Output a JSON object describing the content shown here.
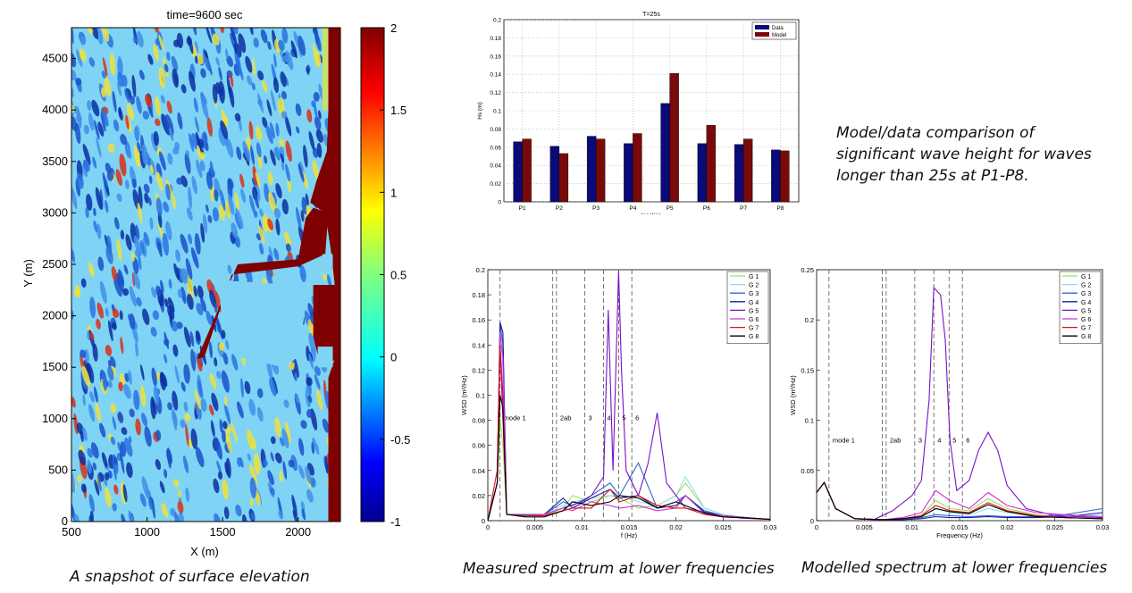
{
  "captions": {
    "snapshot": "A snapshot of surface elevation",
    "measured": "Measured spectrum at lower frequencies",
    "modelled": "Modelled spectrum at lower frequencies",
    "comparison": "Model/data comparison of significant wave height for waves longer than 25s at P1-P8."
  },
  "chart_data": [
    {
      "type": "heatmap",
      "title": "time=9600 sec",
      "xlabel": "X (m)",
      "ylabel": "Y (m)",
      "xlim": [
        500,
        2280
      ],
      "ylim": [
        0,
        4800
      ],
      "xticks": [
        "500",
        "1000",
        "1500",
        "2000"
      ],
      "yticks": [
        "0",
        "500",
        "1000",
        "1500",
        "2000",
        "2500",
        "3000",
        "3500",
        "4000",
        "4500"
      ],
      "colorbar": {
        "range": [
          -1,
          2
        ],
        "ticks": [
          "2",
          "1.5",
          "1",
          "0.5",
          "0",
          "-0.5",
          "-1"
        ]
      },
      "colors": {
        "land": "#7f0000",
        "low": "#00008f",
        "mid": "#7fd4f5",
        "high": "#800000"
      }
    },
    {
      "type": "bar",
      "title": "T=25s",
      "xlabel": "location",
      "ylabel": "Hs (m)",
      "ylim": [
        0,
        0.2
      ],
      "yticks": [
        "0",
        "0.02",
        "0.04",
        "0.06",
        "0.08",
        "0.1",
        "0.12",
        "0.14",
        "0.16",
        "0.18",
        "0.2"
      ],
      "categories": [
        "P1",
        "P2",
        "P3",
        "P4",
        "P5",
        "P6",
        "P7",
        "P8"
      ],
      "series": [
        {
          "name": "Data",
          "color": "#0a0a78",
          "values": [
            0.066,
            0.061,
            0.072,
            0.064,
            0.108,
            0.064,
            0.063,
            0.057
          ]
        },
        {
          "name": "Model",
          "color": "#7a0a0a",
          "values": [
            0.069,
            0.053,
            0.069,
            0.075,
            0.141,
            0.084,
            0.069,
            0.056
          ]
        }
      ],
      "legend": "top-right",
      "grid": true
    },
    {
      "type": "line",
      "xlabel": "f (Hz)",
      "ylabel": "WSD (m²/Hz)",
      "xlim": [
        0,
        0.03
      ],
      "ylim": [
        0,
        0.2
      ],
      "xticks": [
        "0",
        "0.005",
        "0.01",
        "0.015",
        "0.02",
        "0.025",
        "0.03"
      ],
      "yticks": [
        "0",
        "0.02",
        "0.04",
        "0.06",
        "0.08",
        "0.1",
        "0.12",
        "0.14",
        "0.16",
        "0.18",
        "0.2"
      ],
      "modes": [
        {
          "label": "mode 1",
          "x": [
            0.0013
          ]
        },
        {
          "label": "2ab",
          "x": [
            0.0069,
            0.0073
          ]
        },
        {
          "label": "3",
          "x": [
            0.0103
          ]
        },
        {
          "label": "4",
          "x": [
            0.0123
          ]
        },
        {
          "label": "5",
          "x": [
            0.0139
          ]
        },
        {
          "label": "6",
          "x": [
            0.0153
          ]
        }
      ],
      "legend": "top-right",
      "series": [
        {
          "name": "G 1",
          "color": "#9be05a",
          "x": [
            0.0,
            0.001,
            0.0013,
            0.0016,
            0.002,
            0.004,
            0.006,
            0.008,
            0.009,
            0.011,
            0.013,
            0.014,
            0.016,
            0.018,
            0.02,
            0.021,
            0.023,
            0.025,
            0.028,
            0.03
          ],
          "y": [
            0.0,
            0.03,
            0.08,
            0.06,
            0.005,
            0.004,
            0.004,
            0.01,
            0.02,
            0.015,
            0.02,
            0.018,
            0.01,
            0.012,
            0.02,
            0.03,
            0.01,
            0.005,
            0.002,
            0.001
          ]
        },
        {
          "name": "G 2",
          "color": "#8fe0f0",
          "x": [
            0.0,
            0.001,
            0.0013,
            0.0016,
            0.002,
            0.004,
            0.006,
            0.008,
            0.009,
            0.011,
            0.013,
            0.014,
            0.016,
            0.018,
            0.02,
            0.021,
            0.023,
            0.025,
            0.028,
            0.03
          ],
          "y": [
            0.0,
            0.03,
            0.155,
            0.12,
            0.005,
            0.004,
            0.005,
            0.012,
            0.015,
            0.018,
            0.02,
            0.02,
            0.015,
            0.012,
            0.02,
            0.035,
            0.01,
            0.005,
            0.002,
            0.001
          ]
        },
        {
          "name": "G 3",
          "color": "#2a6ccc",
          "x": [
            0.0,
            0.001,
            0.0013,
            0.0016,
            0.002,
            0.004,
            0.006,
            0.008,
            0.009,
            0.011,
            0.013,
            0.014,
            0.016,
            0.018,
            0.02,
            0.021,
            0.023,
            0.025,
            0.028,
            0.03
          ],
          "y": [
            0.0,
            0.03,
            0.158,
            0.14,
            0.005,
            0.005,
            0.005,
            0.015,
            0.012,
            0.02,
            0.03,
            0.02,
            0.046,
            0.01,
            0.015,
            0.02,
            0.008,
            0.004,
            0.002,
            0.001
          ]
        },
        {
          "name": "G 4",
          "color": "#1a1aa0",
          "x": [
            0.0,
            0.001,
            0.0013,
            0.0016,
            0.002,
            0.004,
            0.006,
            0.008,
            0.009,
            0.011,
            0.013,
            0.014,
            0.016,
            0.018,
            0.02,
            0.021,
            0.023,
            0.025,
            0.028,
            0.03
          ],
          "y": [
            0.0,
            0.03,
            0.158,
            0.15,
            0.005,
            0.004,
            0.005,
            0.018,
            0.01,
            0.018,
            0.025,
            0.018,
            0.02,
            0.01,
            0.012,
            0.02,
            0.007,
            0.004,
            0.002,
            0.001
          ]
        },
        {
          "name": "G 5",
          "color": "#7a10c8",
          "x": [
            0.0,
            0.001,
            0.0013,
            0.0016,
            0.002,
            0.004,
            0.006,
            0.008,
            0.01,
            0.011,
            0.0123,
            0.0128,
            0.0133,
            0.0139,
            0.0142,
            0.0147,
            0.016,
            0.017,
            0.018,
            0.019,
            0.021,
            0.024,
            0.027,
            0.03
          ],
          "y": [
            0.0,
            0.03,
            0.14,
            0.1,
            0.005,
            0.004,
            0.005,
            0.01,
            0.015,
            0.02,
            0.035,
            0.168,
            0.04,
            0.199,
            0.12,
            0.04,
            0.02,
            0.045,
            0.086,
            0.03,
            0.01,
            0.005,
            0.002,
            0.001
          ]
        },
        {
          "name": "G 6",
          "color": "#d030d0",
          "x": [
            0.0,
            0.001,
            0.0013,
            0.0016,
            0.002,
            0.004,
            0.006,
            0.008,
            0.009,
            0.011,
            0.013,
            0.014,
            0.016,
            0.018,
            0.02,
            0.021,
            0.023,
            0.025,
            0.028,
            0.03
          ],
          "y": [
            0.0,
            0.03,
            0.15,
            0.13,
            0.005,
            0.004,
            0.005,
            0.01,
            0.008,
            0.015,
            0.012,
            0.01,
            0.012,
            0.008,
            0.01,
            0.02,
            0.006,
            0.004,
            0.002,
            0.001
          ]
        },
        {
          "name": "G 7",
          "color": "#e01010",
          "x": [
            0.0,
            0.001,
            0.0013,
            0.0016,
            0.002,
            0.004,
            0.006,
            0.008,
            0.009,
            0.011,
            0.013,
            0.014,
            0.016,
            0.018,
            0.02,
            0.021,
            0.023,
            0.025,
            0.028,
            0.03
          ],
          "y": [
            0.0,
            0.04,
            0.14,
            0.08,
            0.005,
            0.004,
            0.004,
            0.008,
            0.01,
            0.01,
            0.025,
            0.015,
            0.02,
            0.012,
            0.01,
            0.01,
            0.005,
            0.003,
            0.002,
            0.001
          ]
        },
        {
          "name": "G 8",
          "color": "#000000",
          "x": [
            0.0,
            0.001,
            0.0013,
            0.0016,
            0.002,
            0.004,
            0.006,
            0.008,
            0.009,
            0.011,
            0.013,
            0.014,
            0.016,
            0.018,
            0.02,
            0.021,
            0.023,
            0.025,
            0.028,
            0.03
          ],
          "y": [
            0.0,
            0.03,
            0.1,
            0.09,
            0.005,
            0.003,
            0.003,
            0.008,
            0.015,
            0.012,
            0.015,
            0.02,
            0.018,
            0.01,
            0.015,
            0.012,
            0.006,
            0.003,
            0.002,
            0.001
          ]
        }
      ]
    },
    {
      "type": "line",
      "xlabel": "Frequency (Hz)",
      "ylabel": "WSD (m²/Hz)",
      "xlim": [
        0,
        0.03
      ],
      "ylim": [
        0,
        0.25
      ],
      "xticks": [
        "0",
        "0.005",
        "0.01",
        "0.015",
        "0.02",
        "0.025",
        "0.03"
      ],
      "yticks": [
        "0",
        "0.05",
        "0.1",
        "0.15",
        "0.2",
        "0.25"
      ],
      "modes": [
        {
          "label": "mode 1",
          "x": [
            0.0013
          ]
        },
        {
          "label": "2ab",
          "x": [
            0.0069,
            0.0073
          ]
        },
        {
          "label": "3",
          "x": [
            0.0103
          ]
        },
        {
          "label": "4",
          "x": [
            0.0123
          ]
        },
        {
          "label": "5",
          "x": [
            0.0139
          ]
        },
        {
          "label": "6",
          "x": [
            0.0153
          ]
        }
      ],
      "legend": "top-right",
      "series": [
        {
          "name": "G 1",
          "color": "#9be05a",
          "x": [
            0.0,
            0.0008,
            0.002,
            0.004,
            0.007,
            0.009,
            0.011,
            0.0125,
            0.014,
            0.016,
            0.018,
            0.02,
            0.023,
            0.026,
            0.03
          ],
          "y": [
            0.028,
            0.038,
            0.012,
            0.002,
            0.001,
            0.002,
            0.005,
            0.02,
            0.012,
            0.01,
            0.022,
            0.012,
            0.006,
            0.003,
            0.002
          ]
        },
        {
          "name": "G 2",
          "color": "#8fe0f0",
          "x": [
            0.0,
            0.0008,
            0.002,
            0.004,
            0.007,
            0.009,
            0.011,
            0.0125,
            0.014,
            0.016,
            0.018,
            0.02,
            0.023,
            0.026,
            0.03
          ],
          "y": [
            0.028,
            0.038,
            0.012,
            0.002,
            0.001,
            0.002,
            0.004,
            0.012,
            0.008,
            0.006,
            0.012,
            0.008,
            0.005,
            0.004,
            0.006
          ]
        },
        {
          "name": "G 3",
          "color": "#2a6ccc",
          "x": [
            0.0,
            0.0008,
            0.002,
            0.004,
            0.007,
            0.009,
            0.011,
            0.0125,
            0.014,
            0.016,
            0.018,
            0.02,
            0.023,
            0.026,
            0.03
          ],
          "y": [
            0.028,
            0.038,
            0.012,
            0.002,
            0.001,
            0.001,
            0.003,
            0.006,
            0.005,
            0.004,
            0.005,
            0.004,
            0.004,
            0.006,
            0.012
          ]
        },
        {
          "name": "G 4",
          "color": "#1a1aa0",
          "x": [
            0.0,
            0.0008,
            0.002,
            0.004,
            0.007,
            0.009,
            0.011,
            0.0125,
            0.014,
            0.016,
            0.018,
            0.02,
            0.023,
            0.026,
            0.03
          ],
          "y": [
            0.028,
            0.038,
            0.012,
            0.002,
            0.001,
            0.001,
            0.002,
            0.004,
            0.003,
            0.003,
            0.004,
            0.003,
            0.003,
            0.004,
            0.008
          ]
        },
        {
          "name": "G 5",
          "color": "#7a10c8",
          "x": [
            0.0,
            0.0008,
            0.002,
            0.004,
            0.006,
            0.008,
            0.01,
            0.011,
            0.0118,
            0.0123,
            0.013,
            0.0135,
            0.014,
            0.0147,
            0.016,
            0.017,
            0.018,
            0.019,
            0.02,
            0.022,
            0.025,
            0.03
          ],
          "y": [
            0.028,
            0.038,
            0.012,
            0.002,
            0.001,
            0.01,
            0.025,
            0.04,
            0.12,
            0.232,
            0.225,
            0.18,
            0.08,
            0.03,
            0.04,
            0.07,
            0.088,
            0.07,
            0.035,
            0.012,
            0.005,
            0.003
          ]
        },
        {
          "name": "G 6",
          "color": "#d030d0",
          "x": [
            0.0,
            0.0008,
            0.002,
            0.004,
            0.007,
            0.009,
            0.011,
            0.0125,
            0.014,
            0.016,
            0.018,
            0.02,
            0.023,
            0.026,
            0.03
          ],
          "y": [
            0.028,
            0.038,
            0.012,
            0.002,
            0.001,
            0.003,
            0.008,
            0.03,
            0.02,
            0.012,
            0.028,
            0.015,
            0.008,
            0.006,
            0.004
          ]
        },
        {
          "name": "G 7",
          "color": "#e01010",
          "x": [
            0.0,
            0.0008,
            0.002,
            0.004,
            0.007,
            0.009,
            0.011,
            0.0125,
            0.014,
            0.016,
            0.018,
            0.02,
            0.023,
            0.026,
            0.03
          ],
          "y": [
            0.028,
            0.038,
            0.012,
            0.002,
            0.001,
            0.002,
            0.005,
            0.015,
            0.01,
            0.008,
            0.018,
            0.01,
            0.005,
            0.003,
            0.002
          ]
        },
        {
          "name": "G 8",
          "color": "#000000",
          "x": [
            0.0,
            0.0008,
            0.002,
            0.004,
            0.007,
            0.009,
            0.011,
            0.0125,
            0.014,
            0.016,
            0.018,
            0.02,
            0.023,
            0.026,
            0.03
          ],
          "y": [
            0.028,
            0.038,
            0.012,
            0.002,
            0.001,
            0.002,
            0.004,
            0.012,
            0.009,
            0.007,
            0.016,
            0.009,
            0.004,
            0.003,
            0.002
          ]
        }
      ]
    }
  ]
}
